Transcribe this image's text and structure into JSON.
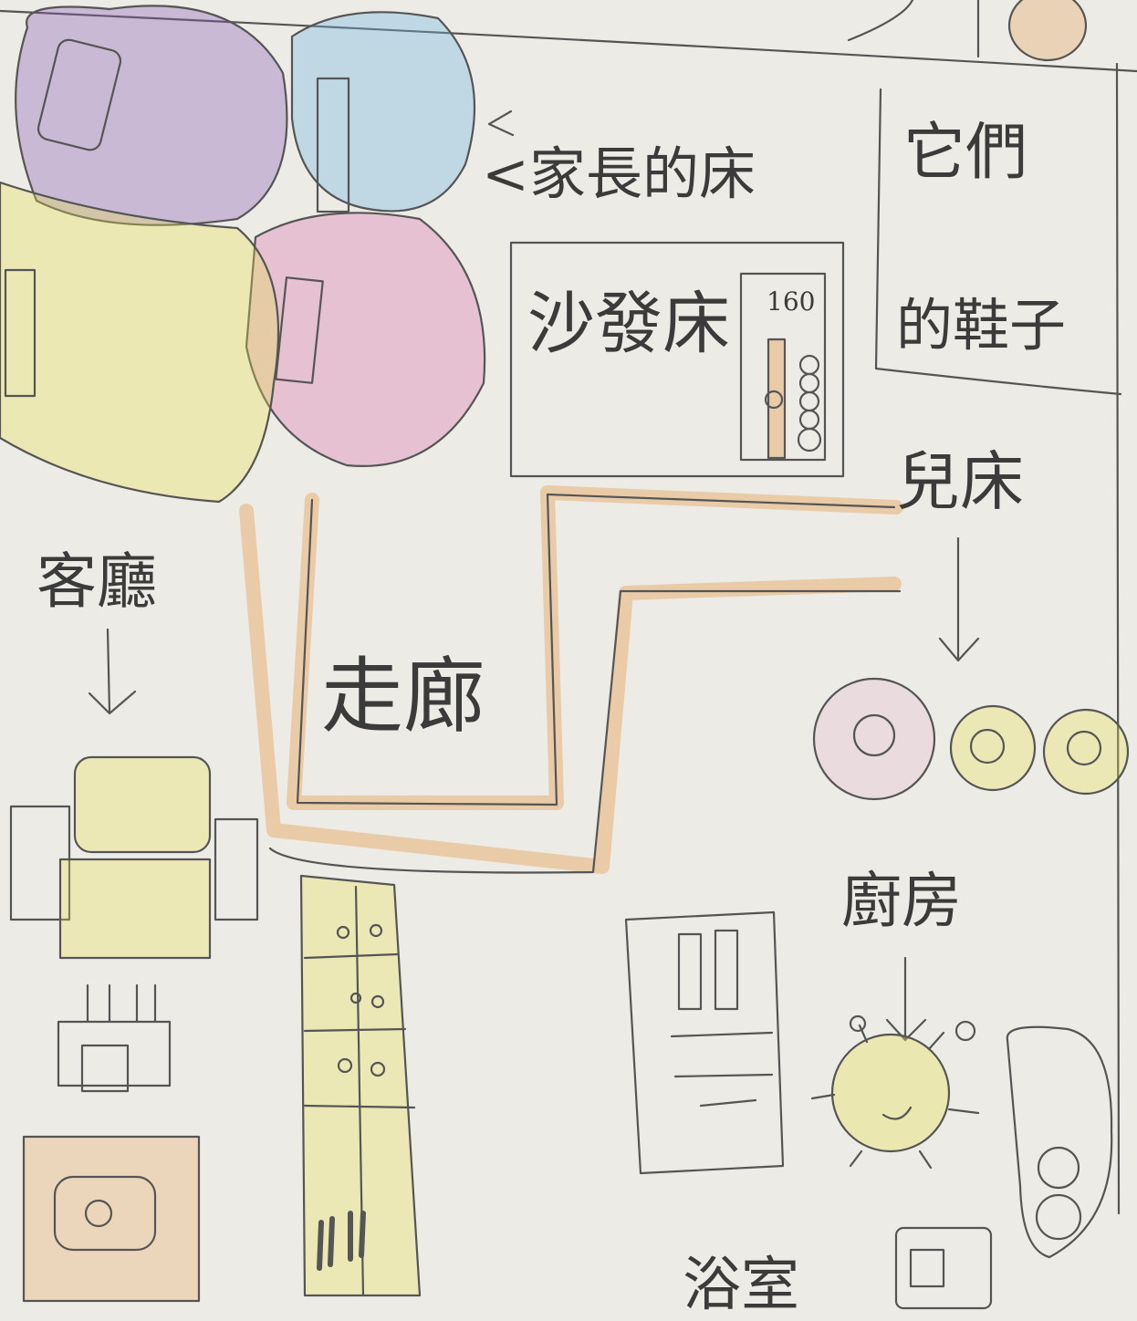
{
  "drawing": {
    "labels": {
      "parents_bed": "<家長的床",
      "their_shoes_col1": "它們",
      "their_shoes_col2": "的鞋子",
      "sofa_bed": "沙發床",
      "children_bed": "兒床",
      "living_room": "客廳",
      "corridor": "走廊",
      "kitchen": "廚房",
      "bathroom": "浴室",
      "number": "160"
    },
    "colors": {
      "pencil": "#555555",
      "purple": "#8a5bb5",
      "blue": "#6fb3e0",
      "pink": "#d86aa8",
      "yellow": "#e8e24a",
      "orange": "#e9a45c",
      "paper": "#ecebe6"
    }
  }
}
